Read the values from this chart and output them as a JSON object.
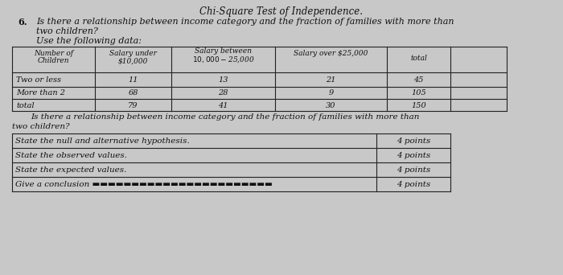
{
  "title": "Chi-Square Test of Independence.",
  "q_num": "6.",
  "q_line1": "Is there a relationship between income category and the fraction of families with more than",
  "q_line2": "two children?",
  "q_line3": "Use the following data:",
  "col_headers": [
    "Number of\nChildren",
    "Salary under\n$10,000",
    "Salary between\n$10,000-$25,000",
    "Salary over $25,000",
    "total"
  ],
  "data_rows": [
    [
      "Two or less",
      "11",
      "13",
      "21",
      "45"
    ],
    [
      "More than 2",
      "68",
      "28",
      "9",
      "105"
    ],
    [
      "total",
      "79",
      "41",
      "30",
      "150"
    ]
  ],
  "repeat_line1": "Is there a relationship between income category and the fraction of families with more than",
  "repeat_line2": "two children?",
  "table2_rows": [
    [
      "State the null and alternative hypothesis.",
      "4 points"
    ],
    [
      "State the observed values.",
      "4 points"
    ],
    [
      "State the expected values.",
      "4 points"
    ],
    [
      "Give a conclusion ▬▬▬▬▬▬▬▬▬▬▬▬▬▬▬▬▬▬▬▬▬▬▬",
      "4 points"
    ]
  ],
  "bg_color": "#c8c8c8",
  "text_color": "#111111",
  "line_color": "#222222"
}
